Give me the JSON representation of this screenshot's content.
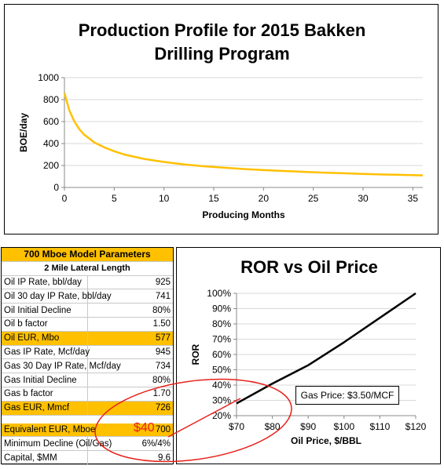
{
  "production_chart": {
    "title_line1": "Production Profile for 2015 Bakken",
    "title_line2": "Drilling Program",
    "ylabel": "BOE/day",
    "xlabel": "Producing Months",
    "line_color": "#ffc000"
  },
  "ror_chart": {
    "title": "ROR vs Oil Price",
    "ylabel": "ROR",
    "xlabel": "Oil Price, $/BBL",
    "gas_price_label": "Gas Price: $3.50/MCF",
    "line_color": "#000000"
  },
  "parameters": {
    "title": "700 Mboe Model Parameters",
    "subtitle": "2 Mile Lateral Length",
    "highlight_color": "#ffc000",
    "rows": [
      {
        "label": "Oil IP Rate, bbl/day",
        "value": "925",
        "highlight": false
      },
      {
        "label": "Oil 30 day IP Rate, bbl/day",
        "value": "741",
        "highlight": false
      },
      {
        "label": "Oil Initial Decline",
        "value": "80%",
        "highlight": false
      },
      {
        "label": "Oil b factor",
        "value": "1.50",
        "highlight": false
      },
      {
        "label": "Oil EUR, Mbo",
        "value": "577",
        "highlight": true
      },
      {
        "label": "Gas IP Rate, Mcf/day",
        "value": "945",
        "highlight": false
      },
      {
        "label": "Gas 30 Day IP Rate, Mcf/day",
        "value": "734",
        "highlight": false
      },
      {
        "label": "Gas Initial Decline",
        "value": "80%",
        "highlight": false
      },
      {
        "label": "Gas b factor",
        "value": "1.70",
        "highlight": false
      },
      {
        "label": "Gas EUR, Mmcf",
        "value": "726",
        "highlight": true
      },
      {
        "gap": true
      },
      {
        "label": "Equivalent EUR, Mboe",
        "value": "700",
        "highlight": true
      },
      {
        "label": "Minimum Decline (Oil/Gas)",
        "value": "6%/4%",
        "highlight": false
      },
      {
        "label": "Capital, $MM",
        "value": "9.6",
        "highlight": false
      }
    ]
  },
  "annotation": {
    "text": "$40",
    "color": "#e8201a"
  },
  "chart_data": [
    {
      "type": "line",
      "title": "Production Profile for 2015 Bakken Drilling Program",
      "xlabel": "Producing Months",
      "ylabel": "BOE/day",
      "xlim": [
        0,
        36
      ],
      "ylim": [
        0,
        1000
      ],
      "xticks": [
        0,
        5,
        10,
        15,
        20,
        25,
        30,
        35
      ],
      "yticks": [
        0,
        200,
        400,
        600,
        800,
        1000
      ],
      "grid": true,
      "series": [
        {
          "x": [
            0,
            0.5,
            1,
            1.5,
            2,
            3,
            4,
            5,
            6,
            8,
            10,
            12,
            14,
            16,
            18,
            20,
            22,
            24,
            26,
            28,
            30,
            32,
            34,
            36
          ],
          "y": [
            860,
            700,
            600,
            530,
            480,
            410,
            365,
            330,
            300,
            260,
            232,
            210,
            193,
            180,
            168,
            158,
            150,
            142,
            135,
            129,
            123,
            118,
            114,
            110
          ]
        }
      ]
    },
    {
      "type": "line",
      "title": "ROR vs Oil Price",
      "xlabel": "Oil Price, $/BBL",
      "ylabel": "ROR",
      "xlim": [
        70,
        120
      ],
      "ylim": [
        0.2,
        1.0
      ],
      "xticks": [
        70,
        80,
        90,
        100,
        110,
        120
      ],
      "xtick_labels": [
        "$70",
        "$80",
        "$90",
        "$100",
        "$110",
        "$120"
      ],
      "yticks": [
        0.2,
        0.3,
        0.4,
        0.5,
        0.6,
        0.7,
        0.8,
        0.9,
        1.0
      ],
      "ytick_labels": [
        "20%",
        "30%",
        "40%",
        "50%",
        "60%",
        "70%",
        "80%",
        "90%",
        "100%"
      ],
      "grid": true,
      "series": [
        {
          "x": [
            70,
            80,
            90,
            100,
            110,
            120
          ],
          "y": [
            0.28,
            0.41,
            0.53,
            0.68,
            0.84,
            1.0
          ]
        }
      ]
    }
  ]
}
